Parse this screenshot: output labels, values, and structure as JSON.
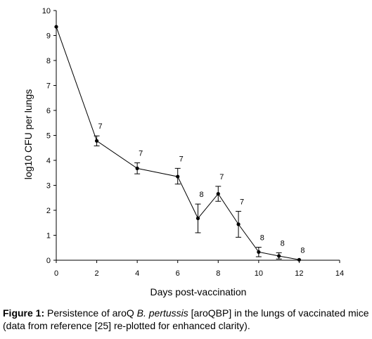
{
  "chart_data": {
    "type": "line",
    "xlabel": "Days post-vaccination",
    "ylabel": "log10 CFU per lungs",
    "xlim": [
      0,
      14
    ],
    "ylim": [
      0,
      10
    ],
    "x_ticks": [
      0,
      2,
      4,
      6,
      8,
      10,
      12,
      14
    ],
    "y_ticks": [
      0,
      1,
      2,
      3,
      4,
      5,
      6,
      7,
      8,
      9,
      10
    ],
    "grid": false,
    "legend": "none",
    "series": [
      {
        "x": [
          0,
          2,
          4,
          6,
          7,
          8,
          9,
          10,
          11,
          12
        ],
        "y": [
          9.35,
          4.78,
          3.68,
          3.35,
          1.68,
          2.66,
          1.44,
          0.33,
          0.17,
          0.02
        ],
        "error_low": [
          null,
          4.58,
          3.46,
          3.05,
          1.1,
          2.36,
          0.92,
          0.14,
          0.05,
          null
        ],
        "error_high": [
          null,
          4.98,
          3.9,
          3.68,
          2.25,
          2.96,
          1.96,
          0.52,
          0.3,
          null
        ],
        "n_labels": [
          "",
          "7",
          "7",
          "7",
          "8",
          "7",
          "7",
          "8",
          "8",
          "8"
        ]
      }
    ],
    "color": "#000000"
  },
  "caption": {
    "label": "Figure 1:",
    "text_1": " Persistence of aroQ ",
    "species": "B. pertussis",
    "text_2": " [aroQBP] in the lungs of vaccinated mice (data from reference [25] re-plotted for enhanced clarity)."
  }
}
